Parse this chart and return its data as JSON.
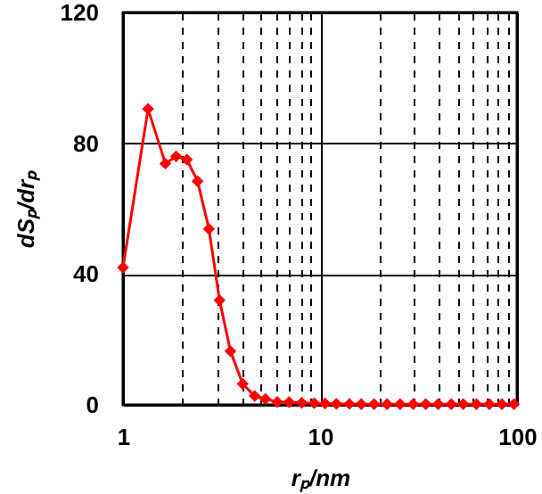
{
  "chart_data": {
    "type": "line",
    "xlabel": "rₚ/nm",
    "ylabel": "dSₚ/drₚ",
    "log": "x",
    "x": [
      1,
      1.34,
      1.64,
      1.86,
      2.11,
      2.39,
      2.73,
      3.09,
      3.51,
      4.05,
      4.66,
      5.28,
      6.07,
      6.97,
      8.07,
      9.34,
      10.6,
      12.1,
      14.1,
      16.2,
      18.8,
      21.9,
      25.5,
      29.7,
      34.4,
      39.8,
      46.4,
      53.3,
      62.2,
      72.4,
      83.8,
      96.4
    ],
    "series": [
      {
        "color": "#ff0000",
        "values": [
          42,
          90.5,
          73.8,
          76,
          75,
          68.4,
          53.8,
          32,
          16.4,
          6.4,
          2.7,
          1.8,
          0.9,
          0.8,
          0.6,
          0.5,
          0.4,
          0.3,
          0.3,
          0.2,
          0.2,
          0.2,
          0.2,
          0.2,
          0.2,
          0.2,
          0.2,
          0.2,
          0.2,
          0.2,
          0.2,
          0.2
        ]
      }
    ],
    "xlim": [
      1,
      100
    ],
    "xticks": [
      1,
      {
        "value": 2,
        "label": null
      },
      {
        "value": 3,
        "label": null
      },
      {
        "value": 4,
        "label": null
      },
      {
        "value": 5,
        "label": null
      },
      {
        "value": 6,
        "label": null
      },
      {
        "value": 7,
        "label": null
      },
      {
        "value": 8,
        "label": null
      },
      {
        "value": 9,
        "label": null
      },
      10,
      {
        "value": 20,
        "label": null
      },
      {
        "value": 30,
        "label": null
      },
      {
        "value": 40,
        "label": null
      },
      {
        "value": 50,
        "label": null
      },
      {
        "value": 60,
        "label": null
      },
      {
        "value": 70,
        "label": null
      },
      {
        "value": 80,
        "label": null
      },
      {
        "value": 90,
        "label": null
      },
      100
    ],
    "ylim": [
      0,
      120
    ],
    "yticks": [
      0,
      40,
      80,
      120
    ],
    "grid": true,
    "marker": "diamond",
    "line_style": "solid"
  }
}
